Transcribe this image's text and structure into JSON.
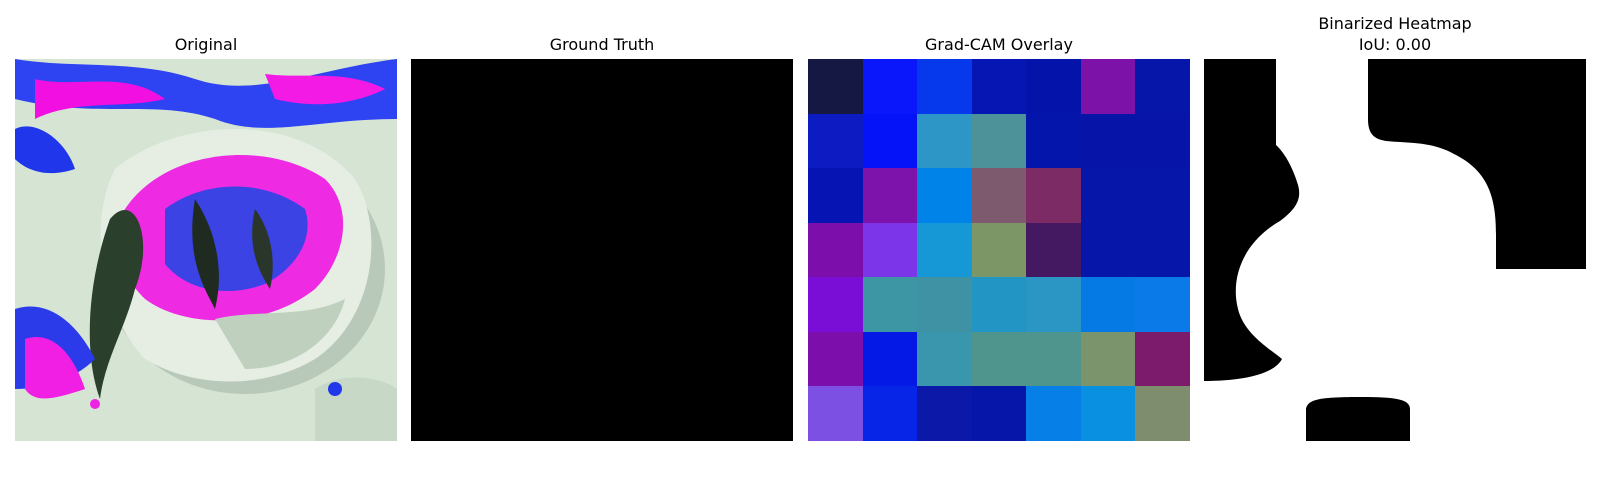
{
  "panels": [
    {
      "title": "Original"
    },
    {
      "title": "Ground Truth"
    },
    {
      "title": "Grad-CAM Overlay"
    },
    {
      "title": "Binarized Heatmap",
      "subtitle": "IoU: 0.00"
    }
  ],
  "gradcam_grid": {
    "rows": 7,
    "cols": 7,
    "colors": [
      [
        "#151842",
        "#0a17fa",
        "#0639ec",
        "#0516b3",
        "#0414ab",
        "#7d12a8",
        "#0616a8"
      ],
      [
        "#0c1bc2",
        "#0413f8",
        "#2d96c6",
        "#4d9299",
        "#0415ac",
        "#0615a8",
        "#0614a8"
      ],
      [
        "#0514b2",
        "#7d13aa",
        "#0083e8",
        "#7d5a6e",
        "#7d2b64",
        "#0616a8",
        "#0616a8"
      ],
      [
        "#7c0fab",
        "#7c35e8",
        "#1798d6",
        "#7d9666",
        "#451862",
        "#0616a8",
        "#0616a8"
      ],
      [
        "#7a0dd6",
        "#3d96a4",
        "#3e92a4",
        "#2295c4",
        "#2b96c4",
        "#057ae4",
        "#0b7ae9"
      ],
      [
        "#7c0fab",
        "#0419e6",
        "#3a96ad",
        "#4f958d",
        "#4f958d",
        "#7c946c",
        "#7c1b6c"
      ],
      [
        "#7c50e2",
        "#0625e6",
        "#0b18a8",
        "#0616a8",
        "#0680e6",
        "#0a90e0",
        "#7d8d6e"
      ]
    ]
  },
  "colors": {
    "background": "#ffffff",
    "mask_foreground": "#ffffff",
    "mask_background": "#000000"
  }
}
